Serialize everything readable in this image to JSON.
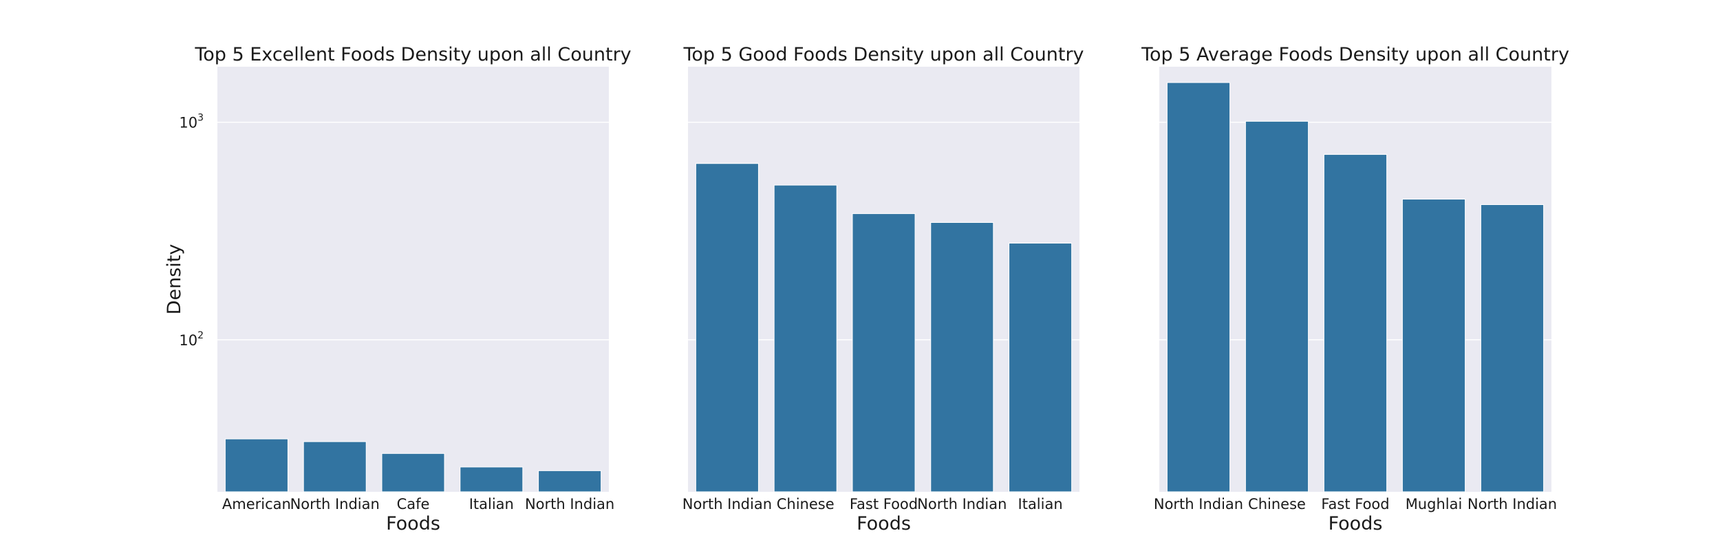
{
  "chart_data": [
    {
      "type": "bar",
      "title": "Top 5 Excellent Foods Density upon all Country",
      "xlabel": "Foods",
      "ylabel": "Density",
      "yscale": "log",
      "ylim": [
        20,
        1800
      ],
      "yticks": [
        {
          "value": 100,
          "base": "10",
          "exp": "2"
        },
        {
          "value": 1000,
          "base": "10",
          "exp": "3"
        }
      ],
      "grid": true,
      "categories": [
        "American",
        "North Indian",
        "Cafe",
        "Italian",
        "North Indian"
      ],
      "values": [
        35,
        34,
        30,
        26,
        25
      ]
    },
    {
      "type": "bar",
      "title": "Top 5 Good Foods Density upon all Country",
      "xlabel": "Foods",
      "ylabel": "",
      "yscale": "log",
      "ylim": [
        20,
        1800
      ],
      "yticks": [],
      "grid": true,
      "categories": [
        "North Indian",
        "Chinese",
        "Fast Food",
        "North Indian",
        "Italian"
      ],
      "values": [
        646,
        514,
        380,
        346,
        278
      ]
    },
    {
      "type": "bar",
      "title": "Top 5 Average Foods Density upon all Country",
      "xlabel": "Foods",
      "ylabel": "",
      "yscale": "log",
      "ylim": [
        20,
        1800
      ],
      "yticks": [],
      "grid": true,
      "categories": [
        "North Indian",
        "Chinese",
        "Fast Food",
        "Mughlai",
        "North Indian"
      ],
      "values": [
        1522,
        1010,
        711,
        443,
        418
      ]
    }
  ]
}
